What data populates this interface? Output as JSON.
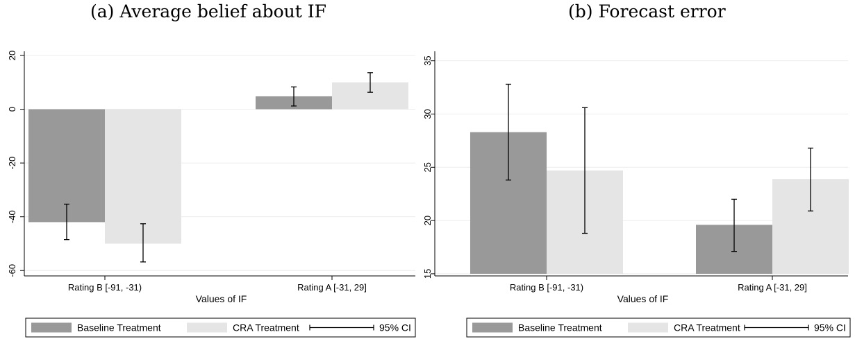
{
  "chart_data": [
    {
      "type": "bar",
      "title": "(a) Average belief about IF",
      "xlabel": "Values of IF",
      "ylabel": "",
      "categories": [
        "Rating B [-91, -31)",
        "Rating A [-31, 29]"
      ],
      "series": [
        {
          "name": "Baseline Treatment",
          "values": [
            -42,
            4.8
          ],
          "ci_low": [
            -48.5,
            1.2
          ],
          "ci_high": [
            -35.3,
            8.3
          ],
          "color": "#999999"
        },
        {
          "name": "CRA Treatment",
          "values": [
            -50,
            10
          ],
          "ci_low": [
            -56.8,
            6.3
          ],
          "ci_high": [
            -42.6,
            13.6
          ],
          "color": "#e5e5e5"
        }
      ],
      "ylim": [
        -62,
        20
      ],
      "yticks": [
        "20",
        "0",
        "-20",
        "-40",
        "-60"
      ],
      "ytick_values": [
        20,
        0,
        -20,
        -40,
        -60
      ],
      "grid": true,
      "legend": {
        "position": "bottom",
        "entries": [
          "Baseline Treatment",
          "CRA Treatment",
          "95% CI"
        ]
      }
    },
    {
      "type": "bar",
      "title": "(b) Forecast error",
      "xlabel": "Values of IF",
      "ylabel": "",
      "categories": [
        "Rating B [-91, -31)",
        "Rating A [-31, 29]"
      ],
      "series": [
        {
          "name": "Baseline Treatment",
          "values": [
            28.3,
            19.6
          ],
          "ci_low": [
            23.8,
            17.1
          ],
          "ci_high": [
            32.8,
            22.0
          ],
          "color": "#999999"
        },
        {
          "name": "CRA Treatment",
          "values": [
            24.7,
            23.9
          ],
          "ci_low": [
            18.8,
            20.9
          ],
          "ci_high": [
            30.6,
            26.8
          ],
          "color": "#e5e5e5"
        }
      ],
      "ylim": [
        14.8,
        35.5
      ],
      "ybase": 15,
      "yticks": [
        "35",
        "30",
        "25",
        "20",
        "15"
      ],
      "ytick_values": [
        35,
        30,
        25,
        20,
        15
      ],
      "grid": true,
      "legend": {
        "position": "bottom",
        "entries": [
          "Baseline Treatment",
          "CRA Treatment",
          "95% CI"
        ]
      }
    }
  ]
}
